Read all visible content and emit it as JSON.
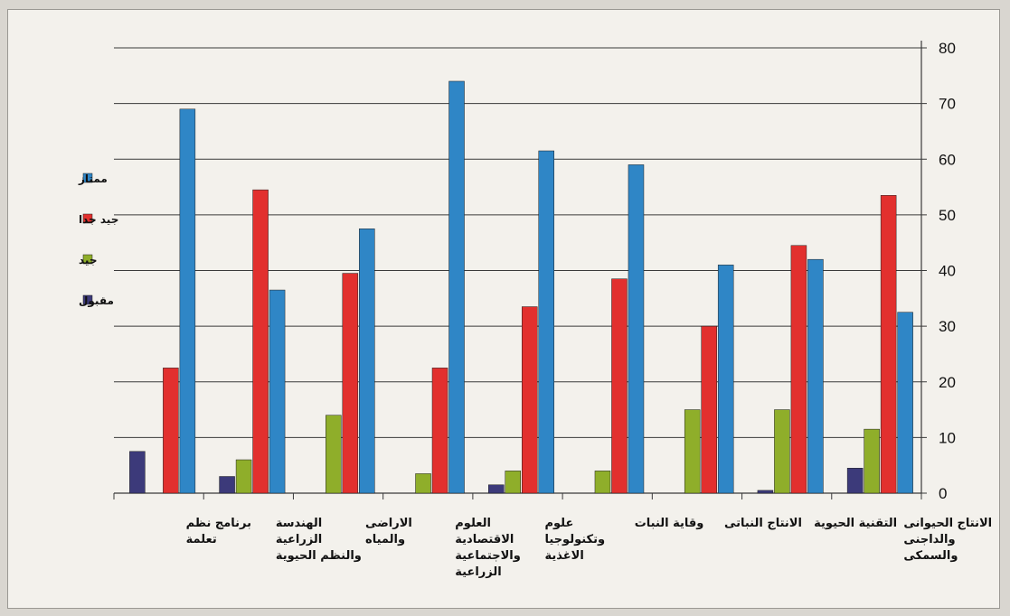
{
  "chart_data": {
    "type": "bar",
    "categories": [
      [
        "برنامج نظم",
        "تعلمة"
      ],
      [
        "الهندسة",
        "الزراعية",
        "والنظم الحيوية"
      ],
      [
        "الاراضى",
        "والمياه"
      ],
      [
        "العلوم",
        "الاقتصادية",
        "والاجتماعية",
        "الزراعية"
      ],
      [
        "علوم",
        "وتكنولوجيا",
        "الاغذية"
      ],
      [
        "وقاية النبات"
      ],
      [
        "الانتاج النباتى"
      ],
      [
        "التقنية الحيوية"
      ],
      [
        "الانتاج الحيوانى",
        "والداجنى",
        "والسمكى"
      ]
    ],
    "series": [
      {
        "name": "مقبول",
        "color": "#3c3a7a",
        "values": [
          7.5,
          3,
          0,
          0,
          1.5,
          0,
          0,
          0.5,
          4.5
        ]
      },
      {
        "name": "جيد",
        "color": "#8fae2a",
        "values": [
          0,
          6,
          14,
          3.5,
          4,
          4,
          15,
          15,
          11.5
        ]
      },
      {
        "name": "جيد جدا",
        "color": "#e2302e",
        "values": [
          22.5,
          54.5,
          39.5,
          22.5,
          33.5,
          38.5,
          30,
          44.5,
          53.5
        ]
      },
      {
        "name": "ممتاز",
        "color": "#2f86c6",
        "values": [
          69,
          36.5,
          47.5,
          74,
          61.5,
          59,
          41,
          42,
          32.5
        ]
      }
    ],
    "y_ticks": [
      "0",
      "10",
      "20",
      "30",
      "40",
      "50",
      "60",
      "70",
      "80"
    ],
    "ylim": [
      0,
      80
    ],
    "axis_side": "right",
    "legend_order": [
      "ممتاز",
      "جيد جدا",
      "جيد",
      "مقبول"
    ],
    "legend_position": "left",
    "grid": true
  }
}
